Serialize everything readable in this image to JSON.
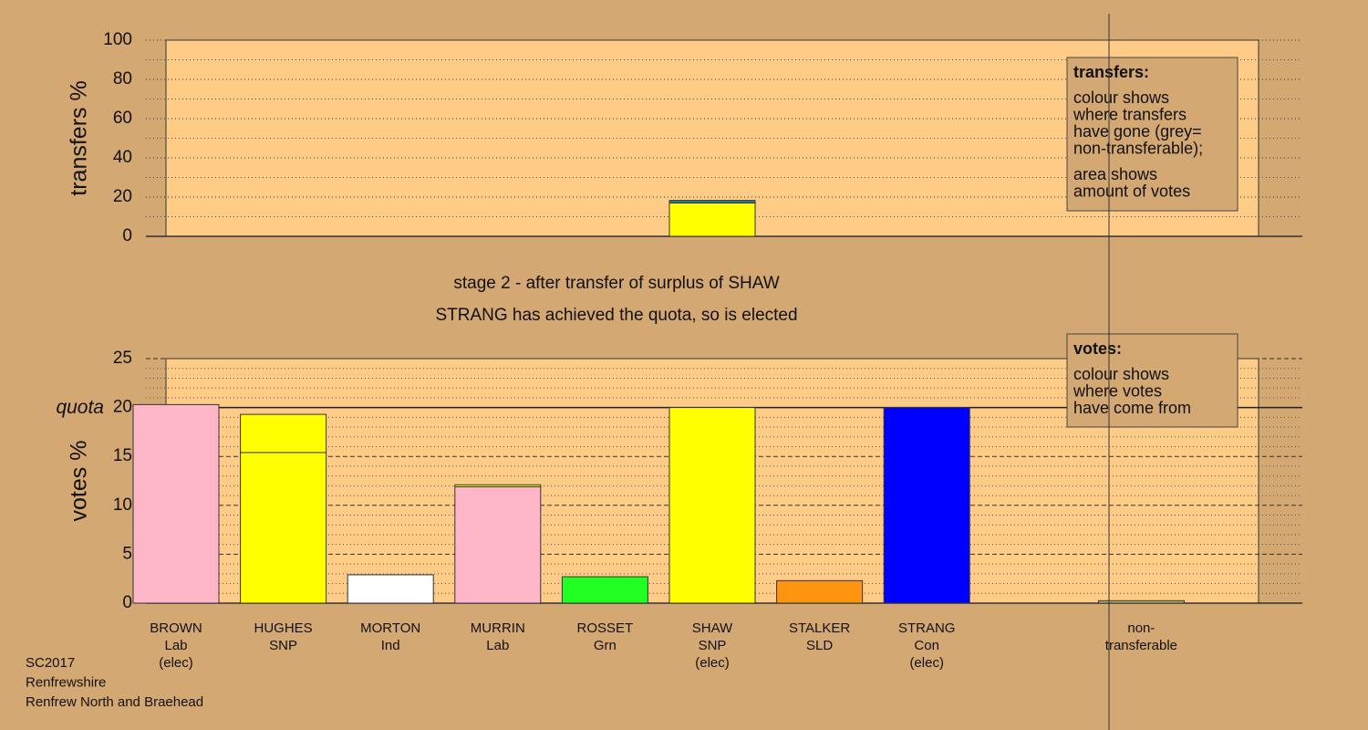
{
  "chart_data": [
    {
      "type": "stacked-bar",
      "y_label": "transfers %",
      "ylim": [
        0,
        100
      ],
      "yticks": [
        0,
        20,
        40,
        60,
        80,
        100
      ],
      "minor_divisions": 2,
      "series": [
        {
          "color": "#ffff00",
          "values": [
            null,
            null,
            null,
            null,
            null,
            17,
            null,
            null,
            null,
            null
          ]
        },
        {
          "color": "#1e7fa0",
          "values": [
            null,
            null,
            null,
            null,
            null,
            1.3,
            null,
            null,
            null,
            null
          ]
        }
      ],
      "note": {
        "title": "transfers:",
        "paragraphs": [
          [
            "colour shows",
            "where transfers",
            "have gone (grey=",
            "non-transferable);"
          ],
          [
            "area shows",
            "amount of votes"
          ]
        ]
      }
    },
    {
      "type": "stacked-bar",
      "y_label": "votes %",
      "ylim": [
        0,
        25
      ],
      "yticks": [
        0,
        5,
        10,
        15,
        20,
        25
      ],
      "minor_divisions": 5,
      "quota": {
        "value": 20,
        "label": "quota"
      },
      "categories": [
        [
          "BROWN",
          "Lab",
          "(elec)"
        ],
        [
          "HUGHES",
          "SNP"
        ],
        [
          "MORTON",
          "Ind"
        ],
        [
          "MURRIN",
          "Lab"
        ],
        [
          "ROSSET",
          "Grn"
        ],
        [
          "SHAW",
          "SNP",
          "(elec)"
        ],
        [
          "STALKER",
          "SLD"
        ],
        [
          "STRANG",
          "Con",
          "(elec)"
        ],
        null,
        [
          "non-",
          "transferable"
        ]
      ],
      "series": [
        {
          "colors": [
            "#ffb6c8",
            "#ffff00",
            "#ffffff",
            "#ffb6c8",
            "#22ff22",
            "#ffff00",
            "#ff9410",
            "#0000ff",
            null,
            "#b8b060"
          ],
          "values": [
            20.3,
            15.4,
            2.9,
            11.9,
            2.7,
            20,
            2.3,
            20,
            null,
            0.25
          ]
        },
        {
          "color": "#ffff00",
          "values": [
            null,
            3.9,
            null,
            0.2,
            null,
            null,
            null,
            null,
            null,
            null
          ]
        }
      ],
      "note": {
        "title": "votes:",
        "paragraphs": [
          [
            "colour shows",
            "where votes",
            "have come from"
          ]
        ]
      }
    }
  ],
  "captions": [
    "stage 2 - after transfer of surplus of SHAW",
    "STRANG has achieved the quota, so is elected"
  ],
  "footer": [
    "SC2017",
    "Renfrewshire",
    "Renfrew North and Braehead"
  ]
}
